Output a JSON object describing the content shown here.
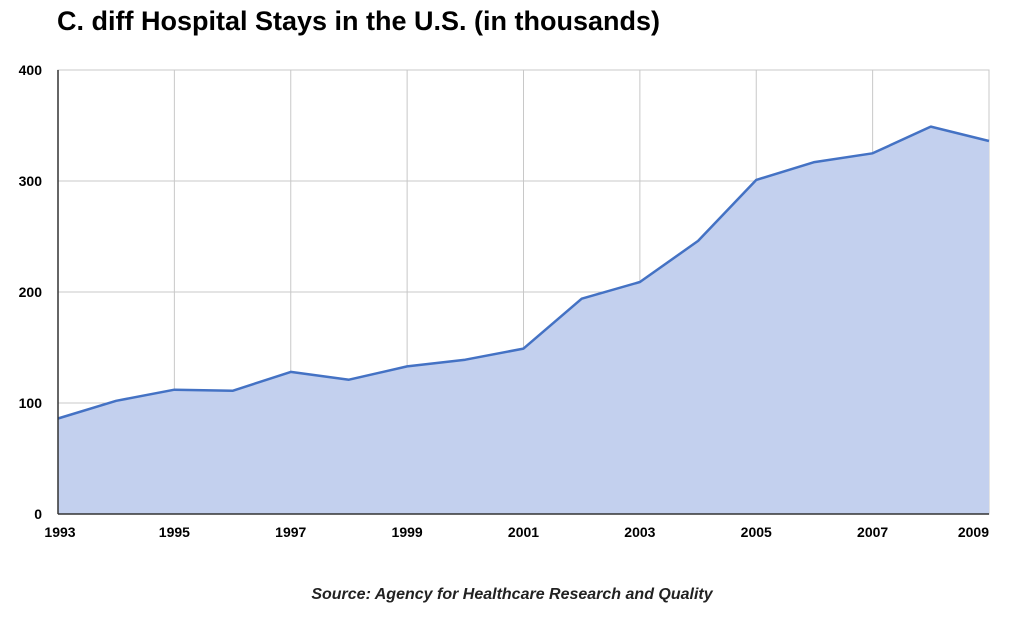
{
  "chart_data": {
    "type": "area",
    "title": "C. diff Hospital Stays in the U.S. (in thousands)",
    "source": "Source: Agency for Healthcare Research and Quality",
    "xlabel": "",
    "ylabel": "",
    "x": [
      1993,
      1994,
      1995,
      1996,
      1997,
      1998,
      1999,
      2000,
      2001,
      2002,
      2003,
      2004,
      2005,
      2006,
      2007,
      2008,
      2009
    ],
    "values": [
      86,
      102,
      112,
      111,
      128,
      121,
      133,
      139,
      149,
      194,
      209,
      246,
      301,
      317,
      325,
      349,
      336
    ],
    "xlim": [
      1993,
      2009
    ],
    "ylim": [
      0,
      400
    ],
    "x_ticks": [
      1993,
      1995,
      1997,
      1999,
      2001,
      2003,
      2005,
      2007,
      2009
    ],
    "y_ticks": [
      0,
      100,
      200,
      300,
      400
    ],
    "grid": true,
    "line_color": "#4472c4",
    "fill_color": "#c3d0ee",
    "grid_color": "#c8c8c8"
  }
}
